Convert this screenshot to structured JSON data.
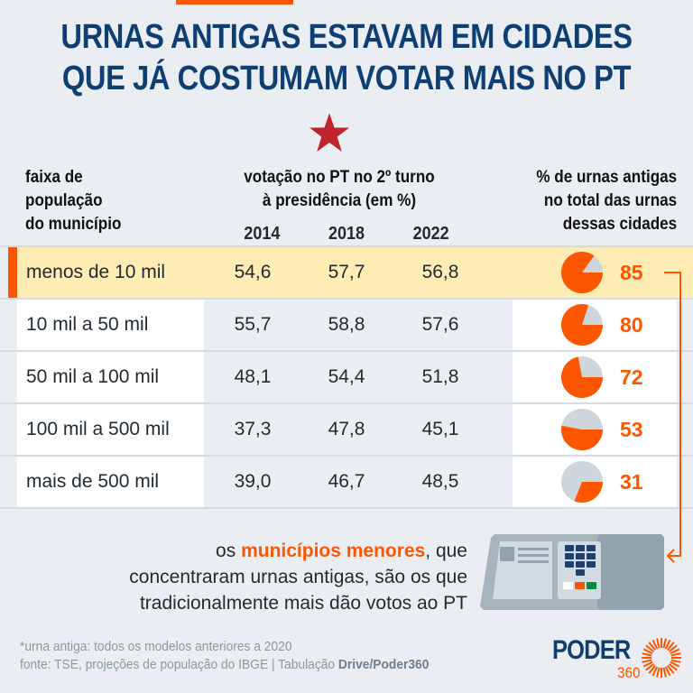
{
  "title": {
    "line1": "URNAS ANTIGAS ESTAVAM EM CIDADES",
    "line2": "QUE JÁ COSTUMAM VOTAR MAIS NO PT"
  },
  "headers": {
    "left": [
      "faixa de",
      "população",
      "do município"
    ],
    "middle": [
      "votação no PT no 2º turno",
      "à presidência (em %)"
    ],
    "years": [
      "2014",
      "2018",
      "2022"
    ],
    "right": [
      "% de urnas antigas",
      "no total das urnas",
      "dessas cidades"
    ]
  },
  "icons": {
    "star": "pt-star-icon",
    "urna": "voting-machine-icon",
    "connector": "arrow-connector-icon"
  },
  "colors": {
    "accent": "#fc5600",
    "title": "#0f3e73",
    "highlight_row": "#ffebb4",
    "pie_rest": "#ced6dc",
    "star": "#c0232c",
    "background": "#eaeef2"
  },
  "chart_data": {
    "type": "table",
    "title": "URNAS ANTIGAS ESTAVAM EM CIDADES QUE JÁ COSTUMAM VOTAR MAIS NO PT",
    "columns": [
      "faixa de população do município",
      "2014",
      "2018",
      "2022",
      "% de urnas antigas no total das urnas dessas cidades"
    ],
    "rows": [
      {
        "label": "menos de 10 mil",
        "v2014": "54,6",
        "v2018": "57,7",
        "v2022": "56,8",
        "old_pct": 85,
        "highlight": true
      },
      {
        "label": "10 mil a 50 mil",
        "v2014": "55,7",
        "v2018": "58,8",
        "v2022": "57,6",
        "old_pct": 80,
        "highlight": false
      },
      {
        "label": "50 mil a 100 mil",
        "v2014": "48,1",
        "v2018": "54,4",
        "v2022": "51,8",
        "old_pct": 72,
        "highlight": false
      },
      {
        "label": "100 mil a 500 mil",
        "v2014": "37,3",
        "v2018": "47,8",
        "v2022": "45,1",
        "old_pct": 53,
        "highlight": false
      },
      {
        "label": "mais de 500 mil",
        "v2014": "39,0",
        "v2018": "46,7",
        "v2022": "48,5",
        "old_pct": 31,
        "highlight": false
      }
    ],
    "series": [
      {
        "name": "2014",
        "values": [
          54.6,
          55.7,
          48.1,
          37.3,
          39.0
        ]
      },
      {
        "name": "2018",
        "values": [
          57.7,
          58.8,
          54.4,
          47.8,
          46.7
        ]
      },
      {
        "name": "2022",
        "values": [
          56.8,
          57.6,
          51.8,
          45.1,
          48.5
        ]
      },
      {
        "name": "% de urnas antigas",
        "type": "pie",
        "values": [
          85,
          80,
          72,
          53,
          31
        ]
      }
    ],
    "categories": [
      "menos de 10 mil",
      "10 mil a 50 mil",
      "50 mil a 100 mil",
      "100 mil a 500 mil",
      "mais de 500 mil"
    ]
  },
  "caption": {
    "pre": "os ",
    "emphasis": "municípios menores",
    "post": ", que",
    "line2": "concentraram urnas antigas, são os que",
    "line3": "tradicionalmente mais dão votos ao PT"
  },
  "footer": {
    "note": "*urna antiga: todos os modelos anteriores a 2020",
    "source_pre": "fonte: TSE, projeções de população do IBGE | Tabulação ",
    "source_bold": "Drive/Poder360"
  },
  "logo": {
    "name": "PODER",
    "number": "360"
  }
}
